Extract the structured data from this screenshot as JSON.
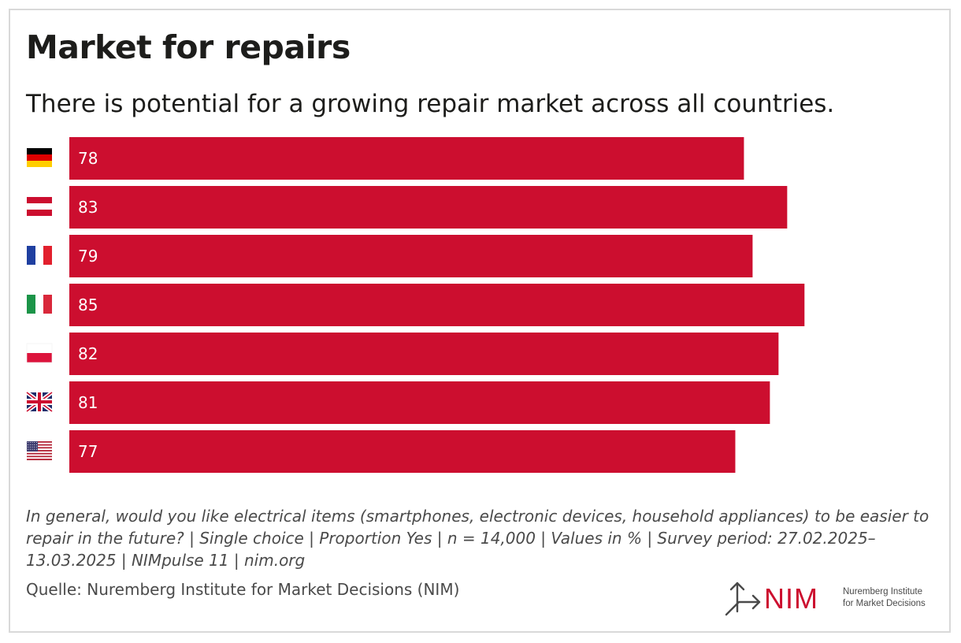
{
  "title": "Market for repairs",
  "subtitle": "There is potential for a growing repair market across all countries.",
  "chart_data": {
    "type": "bar",
    "orientation": "horizontal",
    "categories": [
      "Germany",
      "Austria",
      "France",
      "Italy",
      "Poland",
      "United Kingdom",
      "USA"
    ],
    "category_display": "flag icons",
    "values": [
      78,
      83,
      79,
      85,
      82,
      81,
      77
    ],
    "value_labels": [
      "78",
      "83",
      "79",
      "85",
      "82",
      "81",
      "77"
    ],
    "unit": "%",
    "xlim": [
      0,
      100
    ],
    "bar_color": "#cc0e2f",
    "label_color": "#ffffff",
    "grid": false,
    "legend": "none"
  },
  "flags": [
    {
      "country": "Germany",
      "icon": "germany-flag-icon"
    },
    {
      "country": "Austria",
      "icon": "austria-flag-icon"
    },
    {
      "country": "France",
      "icon": "france-flag-icon"
    },
    {
      "country": "Italy",
      "icon": "italy-flag-icon"
    },
    {
      "country": "Poland",
      "icon": "poland-flag-icon"
    },
    {
      "country": "United Kingdom",
      "icon": "uk-flag-icon"
    },
    {
      "country": "USA",
      "icon": "usa-flag-icon"
    }
  ],
  "footnote": "In general, would you like electrical items (smartphones, electronic devices, household appliances) to be easier to repair in the future? | Single choice | Proportion Yes | n = 14,000 | Values in % | Survey period: 27.02.2025–13.03.2025 | NIMpulse 11 | nim.org",
  "source": "Quelle: Nuremberg Institute for Market Decisions (NIM)",
  "logo": {
    "word": "NIM",
    "line1": "Nuremberg Institute",
    "line2": "for Market Decisions",
    "icon": "nim-arrow-logo-icon",
    "color": "#cc0e2f"
  }
}
